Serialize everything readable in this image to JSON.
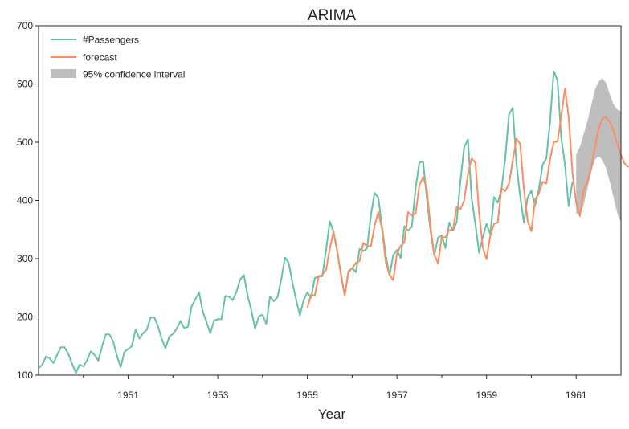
{
  "chart_data": {
    "type": "line",
    "title": "ARIMA",
    "xlabel": "Year",
    "ylabel": "",
    "xlim": [
      1949.0,
      1962.0
    ],
    "ylim": [
      100,
      700
    ],
    "x_ticks": [
      1951,
      1953,
      1955,
      1957,
      1959,
      1961
    ],
    "x_tick_labels": [
      "1951",
      "1953",
      "1955",
      "1957",
      "1959",
      "1961"
    ],
    "y_ticks": [
      100,
      200,
      300,
      400,
      500,
      600,
      700
    ],
    "y_tick_labels": [
      "100",
      "200",
      "300",
      "400",
      "500",
      "600",
      "700"
    ],
    "grid": false,
    "legend_position": "upper-left",
    "legend": [
      "#Passengers",
      "forecast",
      "95% confidence interval"
    ],
    "colors": {
      "passengers": "#66c2a5",
      "forecast": "#fc8d62",
      "ci": "#bebebe",
      "axis": "#262626"
    },
    "passengers_start": "1949-01",
    "passengers": [
      112,
      118,
      132,
      129,
      121,
      135,
      148,
      148,
      136,
      119,
      104,
      118,
      115,
      126,
      141,
      135,
      125,
      149,
      170,
      170,
      158,
      133,
      114,
      140,
      145,
      150,
      178,
      163,
      172,
      178,
      199,
      199,
      184,
      162,
      146,
      166,
      171,
      180,
      193,
      181,
      183,
      218,
      230,
      242,
      209,
      191,
      172,
      194,
      196,
      196,
      236,
      235,
      229,
      243,
      264,
      272,
      237,
      211,
      180,
      201,
      204,
      188,
      235,
      227,
      234,
      264,
      302,
      293,
      259,
      229,
      203,
      229,
      242,
      233,
      267,
      269,
      270,
      315,
      364,
      347,
      312,
      274,
      237,
      278,
      284,
      277,
      317,
      313,
      318,
      374,
      413,
      405,
      355,
      306,
      271,
      306,
      315,
      301,
      356,
      348,
      355,
      422,
      465,
      467,
      404,
      347,
      305,
      336,
      340,
      318,
      362,
      348,
      363,
      435,
      491,
      505,
      404,
      359,
      310,
      337,
      360,
      342,
      406,
      396,
      420,
      472,
      548,
      559,
      463,
      407,
      362,
      405,
      417,
      391,
      419,
      461,
      472,
      535,
      622,
      606,
      508,
      461,
      390,
      432
    ],
    "forecast_start": "1955-01",
    "forecast": [
      216,
      238,
      237,
      270,
      272,
      281,
      317,
      346,
      314,
      271,
      237,
      277,
      283,
      293,
      296,
      327,
      322,
      321,
      357,
      380,
      351,
      294,
      272,
      263,
      309,
      322,
      328,
      380,
      374,
      378,
      426,
      440,
      420,
      354,
      307,
      292,
      337,
      337,
      349,
      349,
      389,
      385,
      400,
      445,
      472,
      465,
      379,
      319,
      299,
      339,
      360,
      362,
      421,
      416,
      429,
      468,
      506,
      497,
      419,
      365,
      347,
      402,
      412,
      432,
      429,
      471,
      500,
      501,
      545,
      592,
      543,
      447,
      396,
      373,
      418,
      432,
      455,
      491,
      524,
      540,
      543,
      535,
      520,
      497,
      478,
      463,
      457
    ],
    "ci_start": "1961-01",
    "ci_lower": [
      378,
      375,
      392,
      420,
      448,
      470,
      476,
      470,
      455,
      432,
      405,
      378,
      363
    ],
    "ci_upper": [
      478,
      492,
      514,
      536,
      562,
      590,
      604,
      610,
      602,
      582,
      565,
      556,
      553
    ]
  }
}
